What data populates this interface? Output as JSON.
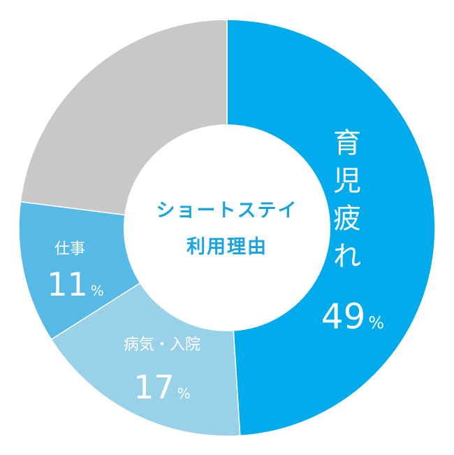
{
  "chart_data": {
    "type": "pie",
    "variant": "donut",
    "center_label": [
      "ショートステイ",
      "利用理由"
    ],
    "slices": [
      {
        "label": "育児疲れ",
        "value": 49,
        "unit": "%",
        "color": "#00aaeb",
        "label_color": "#ffffff"
      },
      {
        "label": "病気・入院",
        "value": 17,
        "unit": "%",
        "color": "#98d1e8",
        "label_color": "#ffffff"
      },
      {
        "label": "仕事",
        "value": 11,
        "unit": "%",
        "color": "#56b9e6",
        "label_color": "#ffffff"
      },
      {
        "label": "",
        "value": 23,
        "unit": "",
        "color": "#c8c8c8",
        "label_color": "#ffffff"
      }
    ],
    "legend": "none",
    "start": "top",
    "direction": "clockwise"
  },
  "colors": {
    "background": "#ffffff",
    "center": "#ffffff",
    "center_text": "#1aa3dd"
  }
}
